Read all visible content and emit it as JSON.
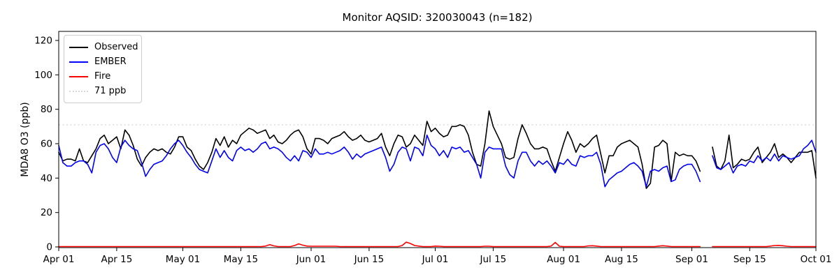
{
  "chart_data": {
    "type": "line",
    "title": "Monitor AQSID: 320030043 (n=182)",
    "n": 182,
    "xlabel": "",
    "ylabel": "MDA8 O3 (ppb)",
    "ylim": [
      0,
      125
    ],
    "yticks": [
      0,
      20,
      40,
      60,
      80,
      100,
      120
    ],
    "x_tick_labels": [
      "Apr 01",
      "Apr 15",
      "May 01",
      "May 15",
      "Jun 01",
      "Jun 15",
      "Jul 01",
      "Jul 15",
      "Aug 01",
      "Aug 15",
      "Sep 01",
      "Sep 15",
      "Oct 01"
    ],
    "x_tick_indices": [
      0,
      14,
      30,
      44,
      61,
      75,
      91,
      105,
      122,
      136,
      153,
      167,
      183
    ],
    "x_start_date": "Apr 01",
    "x_end_date": "Oct 01",
    "missing_dates": [
      "Sep 04",
      "Sep 05"
    ],
    "grid": false,
    "legend_position": "upper left",
    "threshold": {
      "label": "71 ppb",
      "value": 71,
      "color": "#d9d9d9",
      "style": "dotted"
    },
    "series": [
      {
        "name": "Observed",
        "color": "#000000",
        "values": [
          55,
          50,
          51,
          51,
          50,
          57,
          50,
          49,
          53,
          57,
          63,
          65,
          60,
          62,
          64,
          57,
          68,
          65,
          59,
          51,
          47,
          52,
          55,
          57,
          56,
          57,
          55,
          54,
          58,
          64,
          64,
          58,
          56,
          51,
          47,
          45,
          49,
          55,
          63,
          59,
          64,
          58,
          62,
          60,
          65,
          67,
          69,
          68,
          66,
          67,
          68,
          63,
          65,
          61,
          60,
          62,
          65,
          67,
          68,
          64,
          57,
          54,
          63,
          63,
          62,
          60,
          63,
          64,
          65,
          67,
          64,
          62,
          63,
          65,
          62,
          61,
          62,
          63,
          66,
          58,
          53,
          60,
          65,
          64,
          58,
          60,
          65,
          62,
          59,
          73,
          67,
          69,
          66,
          64,
          65,
          70,
          70,
          71,
          70,
          65,
          55,
          48,
          47,
          60,
          79,
          70,
          65,
          60,
          52,
          51,
          52,
          63,
          71,
          66,
          60,
          57,
          57,
          58,
          57,
          50,
          44,
          52,
          60,
          67,
          62,
          55,
          60,
          58,
          60,
          63,
          65,
          54,
          43,
          53,
          53,
          58,
          60,
          61,
          62,
          60,
          58,
          48,
          34,
          37,
          58,
          59,
          62,
          60,
          38,
          55,
          53,
          54,
          53,
          53,
          50,
          44,
          null,
          null,
          58,
          47,
          45,
          50,
          65,
          46,
          48,
          51,
          50,
          51,
          55,
          58,
          49,
          52,
          55,
          60,
          52,
          54,
          52,
          49,
          52,
          55,
          55,
          55,
          56,
          40
        ]
      },
      {
        "name": "EMBER",
        "color": "#0000ff",
        "values": [
          59,
          49,
          47,
          47,
          49,
          50,
          50,
          48,
          43,
          55,
          59,
          60,
          57,
          52,
          49,
          58,
          62,
          59,
          57,
          56,
          49,
          41,
          45,
          48,
          49,
          50,
          53,
          57,
          60,
          62,
          59,
          55,
          52,
          48,
          45,
          44,
          43,
          50,
          57,
          52,
          56,
          52,
          50,
          56,
          58,
          56,
          57,
          55,
          57,
          60,
          61,
          57,
          58,
          57,
          55,
          52,
          50,
          53,
          50,
          56,
          55,
          52,
          57,
          54,
          54,
          55,
          54,
          55,
          56,
          58,
          55,
          51,
          54,
          52,
          54,
          55,
          56,
          57,
          58,
          52,
          44,
          48,
          55,
          58,
          57,
          50,
          58,
          57,
          53,
          65,
          59,
          57,
          53,
          56,
          52,
          58,
          57,
          58,
          55,
          56,
          52,
          48,
          40,
          55,
          58,
          57,
          57,
          57,
          47,
          42,
          40,
          50,
          55,
          55,
          50,
          47,
          50,
          48,
          50,
          47,
          43,
          49,
          48,
          51,
          48,
          47,
          53,
          52,
          53,
          53,
          55,
          48,
          35,
          39,
          41,
          43,
          44,
          46,
          48,
          49,
          47,
          44,
          35,
          44,
          45,
          44,
          46,
          47,
          38,
          39,
          45,
          47,
          48,
          48,
          44,
          38,
          null,
          null,
          53,
          46,
          45,
          47,
          49,
          43,
          47,
          48,
          47,
          50,
          49,
          53,
          50,
          52,
          50,
          54,
          50,
          53,
          52,
          51,
          52,
          53,
          57,
          59,
          62,
          55
        ]
      },
      {
        "name": "Fire",
        "color": "#ff0000",
        "values": [
          0.2,
          0.2,
          0.2,
          0.2,
          0.2,
          0.2,
          0.2,
          0.2,
          0.2,
          0.2,
          0.2,
          0.2,
          0.2,
          0.2,
          0.2,
          0.2,
          0.2,
          0.2,
          0.2,
          0.2,
          0.2,
          0.2,
          0.2,
          0.2,
          0.2,
          0.2,
          0.2,
          0.2,
          0.2,
          0.2,
          0.2,
          0.2,
          0.2,
          0.2,
          0.2,
          0.2,
          0.2,
          0.2,
          0.2,
          0.2,
          0.2,
          0.2,
          0.2,
          0.2,
          0.2,
          0.2,
          0.2,
          0.2,
          0.2,
          0.2,
          0.5,
          1.3,
          0.6,
          0.2,
          0.2,
          0.2,
          0.2,
          0.8,
          1.8,
          1.0,
          0.5,
          0.4,
          0.4,
          0.4,
          0.4,
          0.4,
          0.4,
          0.4,
          0.2,
          0.2,
          0.2,
          0.2,
          0.2,
          0.2,
          0.2,
          0.2,
          0.2,
          0.2,
          0.2,
          0.2,
          0.2,
          0.2,
          0.2,
          0.8,
          2.8,
          2.0,
          0.8,
          0.5,
          0.2,
          0.2,
          0.2,
          0.5,
          0.4,
          0.2,
          0.2,
          0.2,
          0.2,
          0.2,
          0.2,
          0.2,
          0.2,
          0.2,
          0.2,
          0.4,
          0.4,
          0.2,
          0.2,
          0.2,
          0.2,
          0.2,
          0.2,
          0.2,
          0.2,
          0.2,
          0.2,
          0.2,
          0.2,
          0.2,
          0.2,
          0.5,
          2.6,
          0.4,
          0.2,
          0.2,
          0.2,
          0.2,
          0.2,
          0.2,
          0.6,
          0.7,
          0.5,
          0.2,
          0.2,
          0.2,
          0.2,
          0.2,
          0.2,
          0.2,
          0.2,
          0.2,
          0.2,
          0.2,
          0.2,
          0.2,
          0.2,
          0.5,
          0.7,
          0.5,
          0.2,
          0.2,
          0.2,
          0.2,
          0.2,
          0.2,
          0.2,
          0.2,
          null,
          null,
          0.2,
          0.2,
          0.2,
          0.2,
          0.2,
          0.2,
          0.2,
          0.2,
          0.2,
          0.2,
          0.2,
          0.2,
          0.2,
          0.2,
          0.5,
          0.8,
          0.9,
          0.7,
          0.4,
          0.2,
          0.2,
          0.2,
          0.2,
          0.2,
          0.2,
          0.2
        ]
      }
    ]
  }
}
